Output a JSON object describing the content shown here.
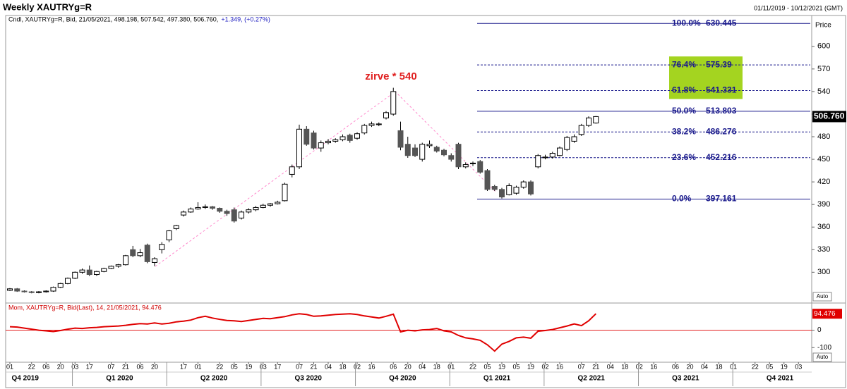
{
  "chart_data": {
    "type": "candlestick",
    "title": "Weekly XAUTRYg=R",
    "date_range": "01/11/2019 - 10/12/2021 (GMT)",
    "info": "Cndl, XAUTRYg=R, Bid, 21/05/2021, 498.198, 507.542, 497.380, 506.760,",
    "info_change": "+1.349, (+0.27%)",
    "y_label": "Price",
    "auto_label": "Auto",
    "annotation": "zirve * 540",
    "categories": [
      "01",
      null,
      null,
      "22",
      null,
      "06",
      null,
      "20",
      null,
      "03",
      null,
      "17",
      null,
      null,
      "07",
      null,
      "21",
      null,
      "06",
      null,
      "20",
      null,
      null,
      null,
      "17",
      null,
      "01",
      null,
      null,
      "22",
      null,
      "05",
      null,
      "19",
      null,
      "03",
      null,
      "17",
      null,
      null,
      "07",
      null,
      "21",
      null,
      "04",
      null,
      "18",
      null,
      "02",
      null,
      "16",
      null,
      null,
      "06",
      null,
      "20",
      null,
      "04",
      null,
      "18",
      null,
      "01",
      null,
      null,
      "22",
      null,
      "05",
      null,
      "19",
      null,
      "05",
      null,
      "19",
      null,
      "02",
      null,
      "16",
      null,
      null,
      "07",
      null,
      "21",
      null,
      "04",
      null,
      "18",
      null,
      "02",
      null,
      "16",
      null,
      null,
      "06",
      null,
      "20",
      null,
      "04",
      null,
      "18",
      null,
      "01",
      null,
      null,
      "22",
      null,
      "05",
      null,
      "19",
      null,
      "03"
    ],
    "quarters": [
      "Q4 2019",
      "Q1 2020",
      "Q2 2020",
      "Q3 2020",
      "Q4 2020",
      "Q1 2021",
      "Q2 2021",
      "Q3 2021",
      "Q4 2021"
    ],
    "open": [
      276,
      278,
      275,
      274,
      273,
      274,
      275,
      280,
      285,
      292,
      300,
      303,
      297,
      301,
      305,
      308,
      310,
      330,
      322,
      336,
      313,
      330,
      343,
      358,
      376,
      380,
      384,
      386,
      387,
      385,
      381,
      383,
      372,
      380,
      383,
      386,
      389,
      391,
      395,
      430,
      440,
      490,
      485,
      465,
      472,
      474,
      476,
      482,
      478,
      485,
      495,
      496,
      505,
      510,
      488,
      470,
      465,
      450,
      468,
      466,
      462,
      455,
      470,
      440,
      444,
      447,
      435,
      414,
      410,
      403,
      405,
      413,
      420,
      440,
      452,
      453,
      455,
      463,
      474,
      483,
      495,
      498.198,
      null,
      null,
      null,
      null,
      null,
      null,
      null,
      null,
      null,
      null,
      null,
      null,
      null,
      null,
      null,
      null,
      null,
      null,
      null,
      null,
      null,
      null,
      null,
      null,
      null,
      null,
      null,
      null
    ],
    "high": [
      279,
      279,
      276,
      275,
      275,
      276,
      281,
      286,
      293,
      301,
      305,
      309,
      302,
      306,
      309,
      311,
      323,
      335,
      331,
      338,
      320,
      340,
      356,
      363,
      382,
      386,
      393,
      390,
      388,
      386,
      383,
      386,
      382,
      385,
      388,
      391,
      392,
      395,
      419,
      443,
      496,
      494,
      488,
      475,
      477,
      478,
      483,
      484,
      486,
      497,
      500,
      499,
      514,
      545,
      500,
      480,
      470,
      472,
      475,
      468,
      464,
      458,
      472,
      446,
      447,
      449,
      437,
      416,
      412,
      418,
      415,
      422,
      422,
      457,
      456,
      460,
      467,
      481,
      483,
      497,
      507,
      507.542,
      null,
      null,
      null,
      null,
      null,
      null,
      null,
      null,
      null,
      null,
      null,
      null,
      null,
      null,
      null,
      null,
      null,
      null,
      null,
      null,
      null,
      null,
      null,
      null,
      null,
      null,
      null,
      null
    ],
    "low": [
      275,
      274,
      273,
      272,
      272,
      273,
      274,
      279,
      284,
      291,
      298,
      295,
      295,
      300,
      304,
      306,
      309,
      320,
      320,
      312,
      308,
      325,
      340,
      356,
      374,
      379,
      383,
      384,
      383,
      379,
      375,
      366,
      370,
      378,
      381,
      385,
      387,
      390,
      394,
      426,
      437,
      468,
      463,
      460,
      470,
      472,
      474,
      472,
      476,
      483,
      493,
      494,
      503,
      508,
      462,
      452,
      453,
      447,
      465,
      459,
      454,
      447,
      437,
      438,
      441,
      431,
      408,
      408,
      398,
      402,
      403,
      411,
      402,
      438,
      450,
      451,
      454,
      461,
      472,
      481,
      493,
      497.38,
      null,
      null,
      null,
      null,
      null,
      null,
      null,
      null,
      null,
      null,
      null,
      null,
      null,
      null,
      null,
      null,
      null,
      null,
      null,
      null,
      null,
      null,
      null,
      null,
      null,
      null,
      null,
      null
    ],
    "close": [
      278,
      275,
      274,
      273,
      274,
      275,
      280,
      285,
      292,
      300,
      303,
      297,
      301,
      305,
      308,
      310,
      322,
      322,
      326,
      314,
      318,
      337,
      355,
      362,
      380,
      384,
      386,
      387,
      385,
      381,
      378,
      368,
      380,
      383,
      386,
      389,
      391,
      393,
      417,
      440,
      490,
      470,
      465,
      472,
      474,
      476,
      480,
      475,
      484,
      495,
      497,
      497,
      512,
      540,
      466,
      455,
      455,
      470,
      470,
      461,
      456,
      450,
      440,
      443,
      445,
      433,
      410,
      410,
      400,
      415,
      413,
      420,
      404,
      455,
      453,
      458,
      465,
      479,
      480,
      495,
      505,
      506.76,
      null,
      null,
      null,
      null,
      null,
      null,
      null,
      null,
      null,
      null,
      null,
      null,
      null,
      null,
      null,
      null,
      null,
      null,
      null,
      null,
      null,
      null,
      null,
      null,
      null,
      null,
      null,
      null
    ],
    "up_color": "#ffffff",
    "down_color": "#555555",
    "ylim": [
      261,
      641
    ],
    "yticks": [
      300,
      330,
      360,
      390,
      420,
      450,
      480,
      510,
      540,
      570,
      600
    ],
    "last_price": {
      "value": 506.76,
      "label": "506.760"
    },
    "fibonacci": {
      "color": "#1a1a8c",
      "highlight_color": "#a4d420",
      "levels": [
        {
          "level": "100.0%",
          "value": 630.445,
          "style": "solid"
        },
        {
          "level": "76.4%",
          "value": 575.39,
          "style": "dashed"
        },
        {
          "level": "61.8%",
          "value": 541.331,
          "style": "dashed"
        },
        {
          "level": "50.0%",
          "value": 513.803,
          "style": "solid"
        },
        {
          "level": "38.2%",
          "value": 486.276,
          "style": "dashed"
        },
        {
          "level": "23.6%",
          "value": 452.216,
          "style": "dashed"
        },
        {
          "level": "0.0%",
          "value": 397.161,
          "style": "solid"
        }
      ]
    },
    "momentum": {
      "info": "Mom, XAUTRYg=R, Bid(Last), 14, 21/05/2021, 94.476",
      "color": "#e00000",
      "values": [
        20,
        18,
        12,
        6,
        0,
        -4,
        -8,
        -2,
        6,
        12,
        10,
        14,
        16,
        20,
        22,
        24,
        28,
        34,
        38,
        36,
        42,
        36,
        40,
        48,
        52,
        58,
        72,
        80,
        70,
        62,
        56,
        54,
        50,
        56,
        62,
        68,
        66,
        72,
        78,
        88,
        94,
        90,
        80,
        82,
        86,
        90,
        92,
        94,
        90,
        82,
        76,
        70,
        80,
        92,
        -10,
        0,
        -4,
        2,
        4,
        10,
        -4,
        -10,
        -30,
        -44,
        -50,
        -58,
        -84,
        -120,
        -80,
        -64,
        -44,
        -40,
        -46,
        -6,
        -2,
        4,
        14,
        24,
        36,
        26,
        54,
        94.476,
        null,
        null,
        null,
        null,
        null,
        null,
        null,
        null,
        null,
        null,
        null,
        null,
        null,
        null,
        null,
        null,
        null,
        null,
        null,
        null,
        null,
        null,
        null,
        null,
        null,
        null,
        null,
        null
      ],
      "ylim": [
        -184,
        148
      ],
      "yticks": [
        0,
        -100
      ],
      "last": {
        "value": 94.476,
        "label": "94.476"
      },
      "auto_label": "Auto"
    }
  }
}
